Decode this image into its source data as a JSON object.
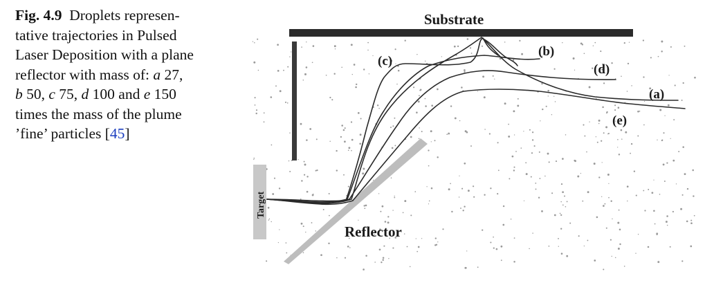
{
  "caption": {
    "figure_label": "Fig. 4.9",
    "line1_rest": "Droplets represen-",
    "line2": "tative trajectories in Pulsed",
    "line3": "Laser Deposition with a plane",
    "line4_pre": "reflector with mass of: ",
    "line4_a": "a",
    "line4_post": " 27,",
    "line5_b": "b",
    "line5_1": " 50, ",
    "line5_c": "c",
    "line5_2": " 75, ",
    "line5_d": "d",
    "line5_3": " 100 and ",
    "line5_e": "e",
    "line5_4": " 150",
    "line6": "times the mass of the plume",
    "line7_pre": "’fine’ particles [",
    "line7_ref": "45",
    "line7_post": "]"
  },
  "figure": {
    "substrate_label": "Substrate",
    "reflector_label": "Reflector",
    "target_label": "Target",
    "trajectory_labels": {
      "a": "(a)",
      "b": "(b)",
      "c": "(c)",
      "d": "(d)",
      "e": "(e)"
    }
  }
}
